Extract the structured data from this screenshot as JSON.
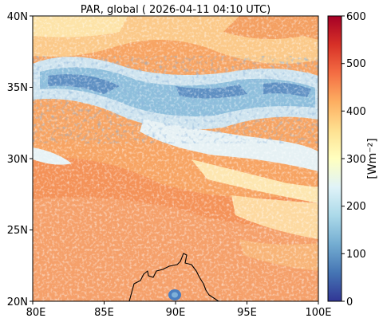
{
  "title": "PAR, global ( 2026-04-11 04:10 UTC)",
  "map": {
    "lat_ticks": [
      "40N",
      "35N",
      "30N",
      "25N",
      "20N"
    ],
    "lon_ticks": [
      "80E",
      "85E",
      "90E",
      "95E",
      "100E"
    ],
    "lat_range": [
      20,
      40
    ],
    "lon_range": [
      80,
      100
    ],
    "coastline": "black"
  },
  "colorbar": {
    "label": "[Wm⁻²]",
    "ticks": [
      "600",
      "500",
      "400",
      "300",
      "200",
      "100",
      "0"
    ],
    "range": [
      0,
      600
    ],
    "colormap": "RdYlBu_r",
    "colors": [
      "#a50026",
      "#d73027",
      "#f46d43",
      "#fdae61",
      "#fee090",
      "#ffffbf",
      "#e0f3f8",
      "#abd9e9",
      "#74add1",
      "#4575b4",
      "#313695"
    ]
  }
}
